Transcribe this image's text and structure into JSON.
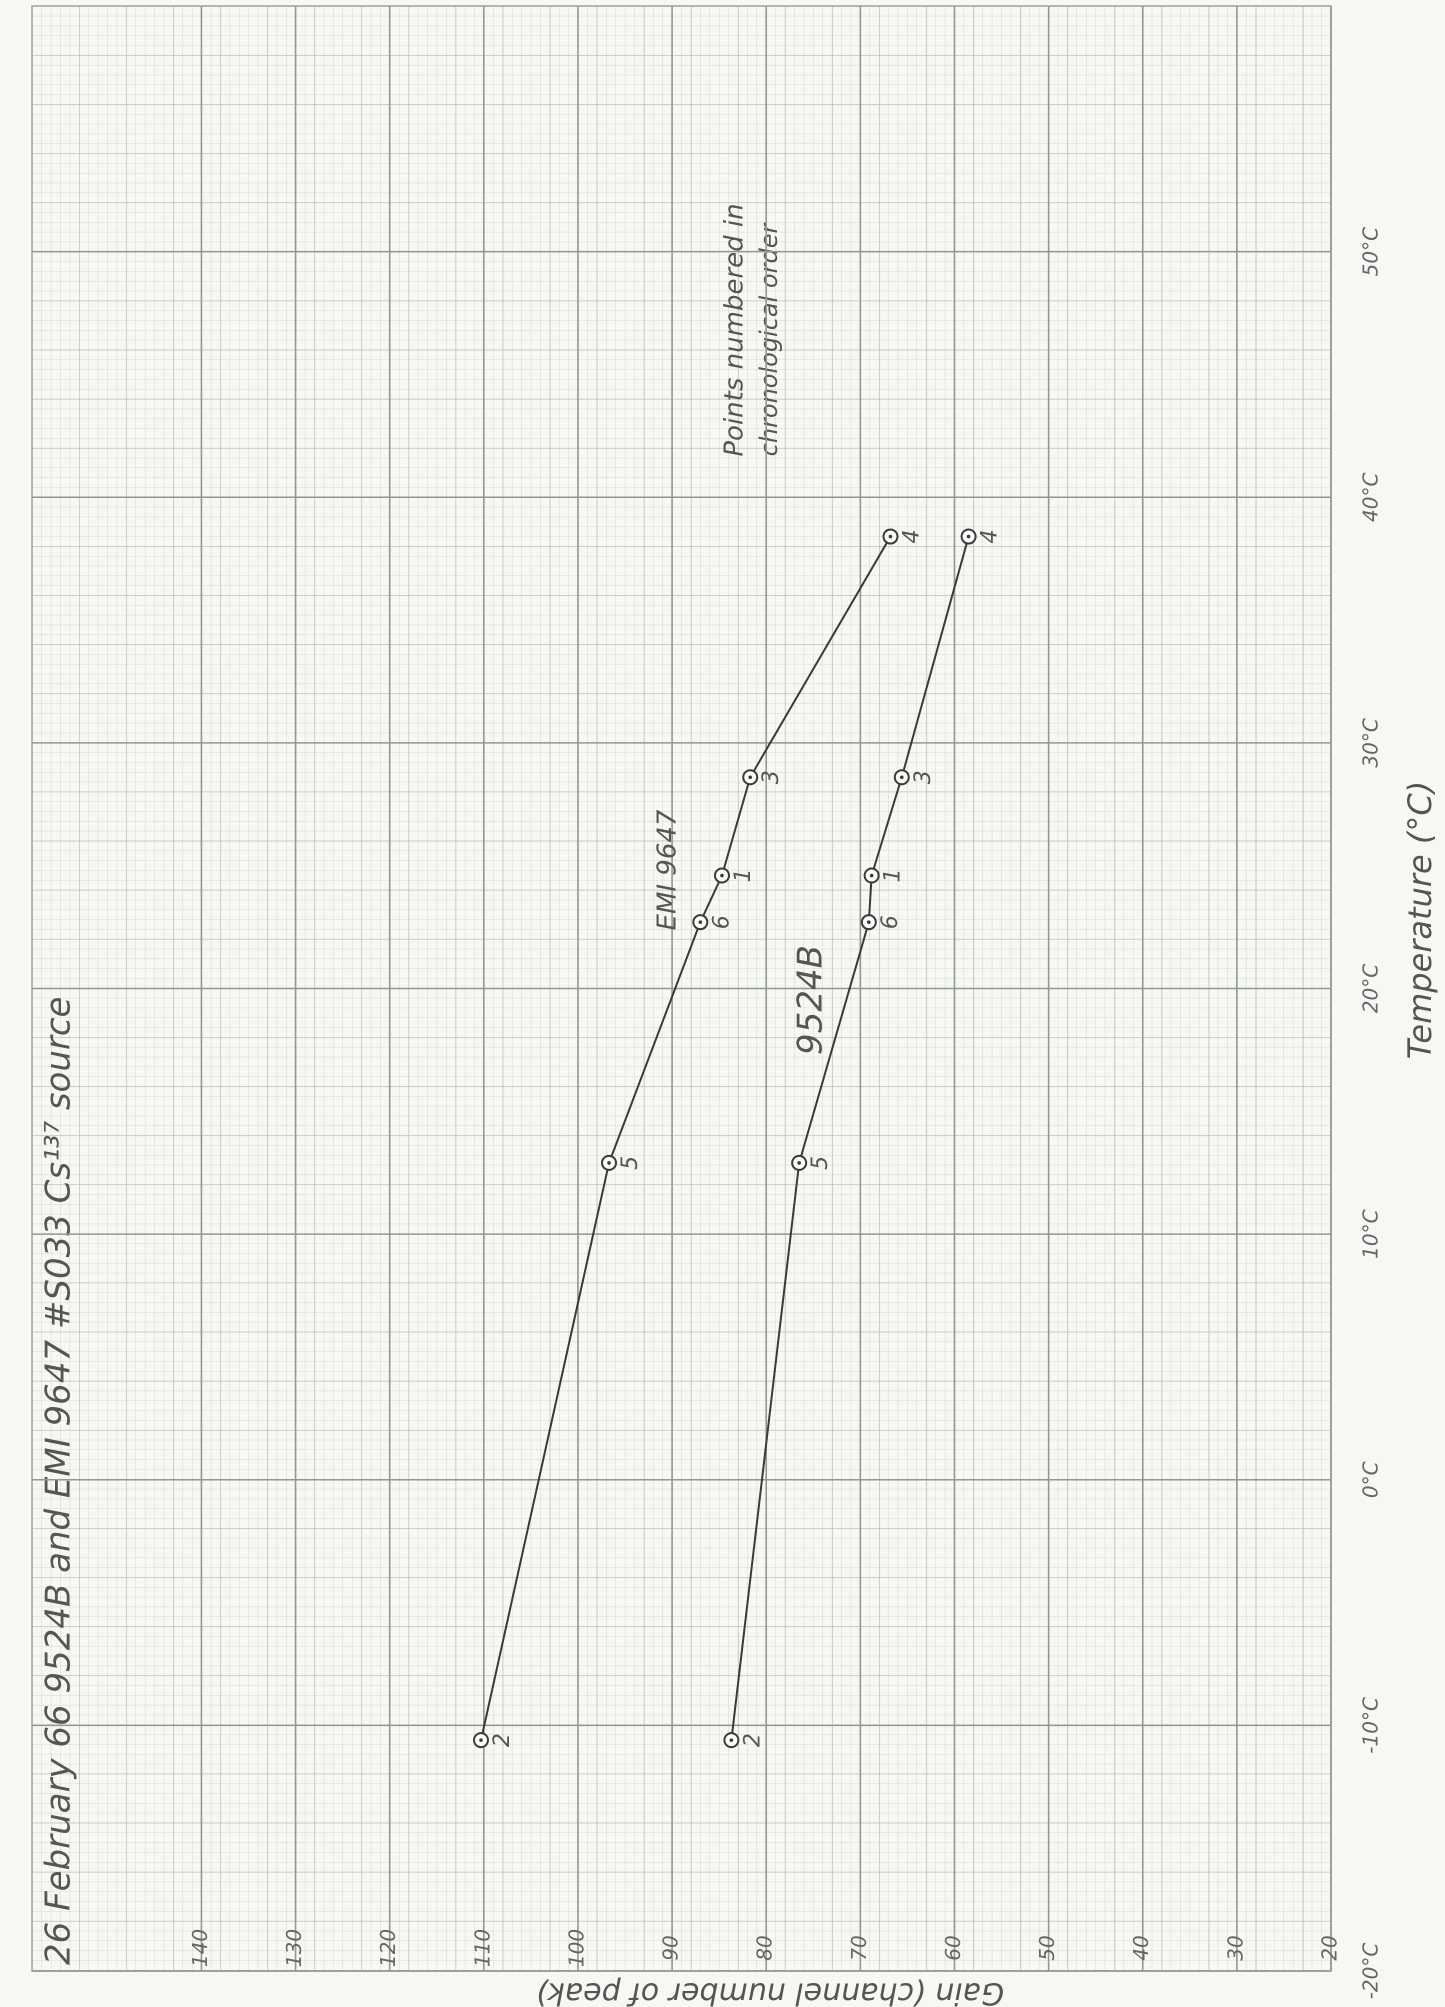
{
  "chart_data": {
    "type": "line",
    "title": "26 February 66   9524B and EMI 9647 #S033   Cs¹³⁷ source",
    "x_label": "Temperature (°C)",
    "y_label": "Gain (channel number of peak)",
    "x": [
      -10.6,
      12.9,
      22.7,
      24.6,
      28.6,
      38.4
    ],
    "series": [
      {
        "name": "EMI 9647",
        "color": "#3a3a3a",
        "values": [
          110.3,
          96.7,
          87.0,
          84.7,
          81.7,
          66.8
        ],
        "point_labels": [
          "2",
          "5",
          "6",
          "1",
          "3",
          "4"
        ]
      },
      {
        "name": "9524B",
        "color": "#3a3a3a",
        "values": [
          83.7,
          76.5,
          69.1,
          68.8,
          65.6,
          58.5
        ],
        "point_labels": [
          "2",
          "5",
          "6",
          "1",
          "3",
          "4"
        ]
      }
    ],
    "xlim": [
      -20,
      60
    ],
    "ylim": [
      20,
      158
    ],
    "xticks": [
      {
        "value": -20,
        "label": "-20°C"
      },
      {
        "value": -10,
        "label": "-10°C"
      },
      {
        "value": 0,
        "label": "0°C"
      },
      {
        "value": 10,
        "label": "10°C"
      },
      {
        "value": 20,
        "label": "20°C"
      },
      {
        "value": 30,
        "label": "30°C"
      },
      {
        "value": 40,
        "label": "40°C"
      },
      {
        "value": 50,
        "label": "50°C"
      }
    ],
    "yticks": [
      20,
      30,
      40,
      50,
      60,
      70,
      80,
      90,
      100,
      110,
      120,
      130,
      140
    ],
    "grid": true,
    "annotations": [
      "Points numbered in",
      "chronological order"
    ]
  }
}
